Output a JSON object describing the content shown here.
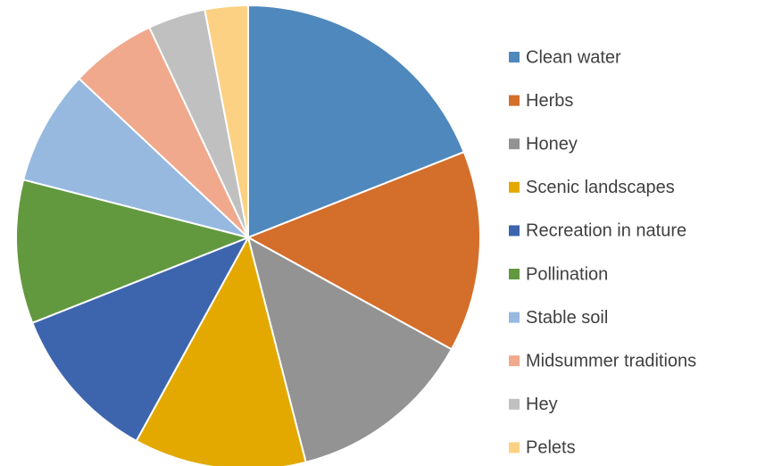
{
  "chart_data": {
    "type": "pie",
    "categories": [
      "Clean water",
      "Herbs",
      "Honey",
      "Scenic landscapes",
      "Recreation in nature",
      "Pollination",
      "Stable soil",
      "Midsummer traditions",
      "Hey",
      "Pelets"
    ],
    "values": [
      19,
      14,
      13,
      12,
      11,
      10,
      8,
      6,
      4,
      3
    ],
    "colors": [
      "#4f88bd",
      "#d46e2b",
      "#939393",
      "#e3a900",
      "#3d65ad",
      "#62993f",
      "#97b9e0",
      "#f0a98c",
      "#c0c0c0",
      "#fdd183"
    ],
    "legend": "right"
  }
}
